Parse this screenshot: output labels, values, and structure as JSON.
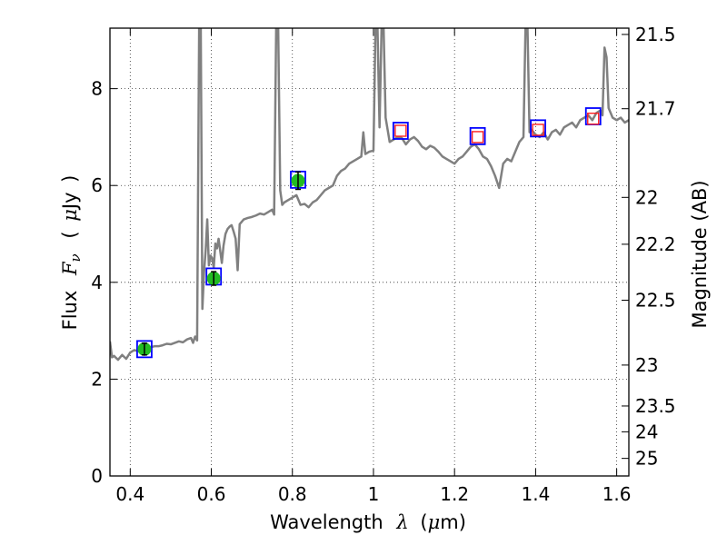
{
  "chart_data": {
    "type": "scatter",
    "xlabel": {
      "prefix": "Wavelength",
      "symbol": "λ",
      "unit_open": "(",
      "unit_mu": "μ",
      "unit_rest": "m)"
    },
    "ylabel": {
      "prefix": "Flux",
      "symbol": "F",
      "subscript": "ν",
      "unit_open": "(",
      "unit_mu": "μ",
      "unit_rest": "Jy",
      "unit_close": ")"
    },
    "y2label": "Magnitude (AB)",
    "xlim": [
      0.35,
      1.63
    ],
    "ylim": [
      0,
      9.25
    ],
    "xticks": [
      0.4,
      0.6,
      0.8,
      1.0,
      1.2,
      1.4,
      1.6
    ],
    "xtick_labels": [
      "0.4",
      "0.6",
      "0.8",
      "1",
      "1.2",
      "1.4",
      "1.6"
    ],
    "yticks": [
      0,
      2,
      4,
      6,
      8
    ],
    "ytick_labels": [
      "0",
      "2",
      "4",
      "6",
      "8"
    ],
    "y2ticks": [
      21.5,
      21.7,
      22,
      22.2,
      22.5,
      23,
      23.5,
      24,
      25
    ],
    "y2tick_labels": [
      "21.5",
      "21.7",
      "22",
      "22.2",
      "22.5",
      "23",
      "23.5",
      "24",
      "25"
    ],
    "grid": true,
    "colors": {
      "spectrum": "#808080",
      "observed_fill": "#22bb22",
      "model_box": "#0000ff",
      "predicted_box": "#ff2020",
      "errorbar": "#000000"
    },
    "spectrum": [
      [
        0.35,
        2.78
      ],
      [
        0.355,
        2.45
      ],
      [
        0.36,
        2.48
      ],
      [
        0.37,
        2.4
      ],
      [
        0.38,
        2.5
      ],
      [
        0.39,
        2.42
      ],
      [
        0.4,
        2.55
      ],
      [
        0.41,
        2.6
      ],
      [
        0.42,
        2.58
      ],
      [
        0.43,
        2.62
      ],
      [
        0.44,
        2.63
      ],
      [
        0.45,
        2.66
      ],
      [
        0.46,
        2.68
      ],
      [
        0.47,
        2.68
      ],
      [
        0.48,
        2.7
      ],
      [
        0.49,
        2.73
      ],
      [
        0.5,
        2.72
      ],
      [
        0.51,
        2.75
      ],
      [
        0.52,
        2.78
      ],
      [
        0.53,
        2.76
      ],
      [
        0.54,
        2.82
      ],
      [
        0.55,
        2.85
      ],
      [
        0.555,
        2.75
      ],
      [
        0.56,
        2.88
      ],
      [
        0.565,
        2.8
      ],
      [
        0.57,
        9.25
      ],
      [
        0.574,
        9.25
      ],
      [
        0.578,
        3.45
      ],
      [
        0.582,
        4.2
      ],
      [
        0.586,
        4.65
      ],
      [
        0.59,
        5.3
      ],
      [
        0.594,
        4.35
      ],
      [
        0.598,
        4.55
      ],
      [
        0.602,
        4.5
      ],
      [
        0.606,
        4.3
      ],
      [
        0.61,
        4.8
      ],
      [
        0.614,
        4.7
      ],
      [
        0.618,
        4.9
      ],
      [
        0.622,
        4.65
      ],
      [
        0.626,
        4.4
      ],
      [
        0.63,
        4.75
      ],
      [
        0.635,
        5.0
      ],
      [
        0.64,
        5.1
      ],
      [
        0.645,
        5.15
      ],
      [
        0.65,
        5.18
      ],
      [
        0.655,
        5.05
      ],
      [
        0.66,
        4.9
      ],
      [
        0.665,
        4.25
      ],
      [
        0.67,
        5.2
      ],
      [
        0.675,
        5.25
      ],
      [
        0.68,
        5.3
      ],
      [
        0.69,
        5.33
      ],
      [
        0.7,
        5.35
      ],
      [
        0.71,
        5.38
      ],
      [
        0.72,
        5.42
      ],
      [
        0.73,
        5.4
      ],
      [
        0.74,
        5.45
      ],
      [
        0.75,
        5.5
      ],
      [
        0.755,
        5.4
      ],
      [
        0.76,
        9.25
      ],
      [
        0.765,
        9.25
      ],
      [
        0.77,
        5.9
      ],
      [
        0.775,
        5.6
      ],
      [
        0.78,
        5.65
      ],
      [
        0.79,
        5.7
      ],
      [
        0.8,
        5.75
      ],
      [
        0.81,
        5.8
      ],
      [
        0.82,
        5.6
      ],
      [
        0.83,
        5.62
      ],
      [
        0.84,
        5.55
      ],
      [
        0.85,
        5.65
      ],
      [
        0.86,
        5.7
      ],
      [
        0.87,
        5.8
      ],
      [
        0.88,
        5.9
      ],
      [
        0.89,
        5.95
      ],
      [
        0.9,
        6.0
      ],
      [
        0.91,
        6.2
      ],
      [
        0.92,
        6.3
      ],
      [
        0.93,
        6.35
      ],
      [
        0.94,
        6.45
      ],
      [
        0.95,
        6.5
      ],
      [
        0.96,
        6.55
      ],
      [
        0.97,
        6.6
      ],
      [
        0.975,
        7.1
      ],
      [
        0.98,
        6.65
      ],
      [
        0.99,
        6.7
      ],
      [
        1.0,
        6.72
      ],
      [
        1.005,
        9.25
      ],
      [
        1.01,
        9.25
      ],
      [
        1.015,
        7.2
      ],
      [
        1.02,
        9.25
      ],
      [
        1.025,
        9.25
      ],
      [
        1.03,
        7.4
      ],
      [
        1.04,
        6.9
      ],
      [
        1.05,
        6.95
      ],
      [
        1.06,
        7.0
      ],
      [
        1.07,
        6.98
      ],
      [
        1.08,
        6.85
      ],
      [
        1.09,
        6.95
      ],
      [
        1.1,
        7.0
      ],
      [
        1.11,
        6.92
      ],
      [
        1.12,
        6.8
      ],
      [
        1.13,
        6.75
      ],
      [
        1.14,
        6.82
      ],
      [
        1.15,
        6.78
      ],
      [
        1.16,
        6.7
      ],
      [
        1.17,
        6.6
      ],
      [
        1.18,
        6.55
      ],
      [
        1.19,
        6.5
      ],
      [
        1.2,
        6.45
      ],
      [
        1.21,
        6.55
      ],
      [
        1.22,
        6.6
      ],
      [
        1.23,
        6.7
      ],
      [
        1.24,
        6.8
      ],
      [
        1.25,
        6.85
      ],
      [
        1.26,
        6.75
      ],
      [
        1.27,
        6.6
      ],
      [
        1.28,
        6.55
      ],
      [
        1.29,
        6.4
      ],
      [
        1.3,
        6.2
      ],
      [
        1.31,
        5.95
      ],
      [
        1.32,
        6.45
      ],
      [
        1.33,
        6.55
      ],
      [
        1.34,
        6.5
      ],
      [
        1.35,
        6.7
      ],
      [
        1.36,
        6.9
      ],
      [
        1.37,
        7.0
      ],
      [
        1.375,
        9.25
      ],
      [
        1.38,
        9.25
      ],
      [
        1.385,
        7.1
      ],
      [
        1.39,
        7.15
      ],
      [
        1.4,
        7.05
      ],
      [
        1.41,
        7.0
      ],
      [
        1.42,
        7.1
      ],
      [
        1.43,
        6.95
      ],
      [
        1.44,
        7.1
      ],
      [
        1.45,
        7.15
      ],
      [
        1.46,
        7.05
      ],
      [
        1.47,
        7.2
      ],
      [
        1.48,
        7.25
      ],
      [
        1.49,
        7.3
      ],
      [
        1.5,
        7.2
      ],
      [
        1.51,
        7.35
      ],
      [
        1.52,
        7.4
      ],
      [
        1.53,
        7.45
      ],
      [
        1.54,
        7.35
      ],
      [
        1.55,
        7.5
      ],
      [
        1.56,
        7.55
      ],
      [
        1.565,
        7.45
      ],
      [
        1.57,
        8.85
      ],
      [
        1.575,
        8.65
      ],
      [
        1.58,
        7.6
      ],
      [
        1.59,
        7.4
      ],
      [
        1.6,
        7.35
      ],
      [
        1.61,
        7.4
      ],
      [
        1.62,
        7.3
      ],
      [
        1.63,
        7.35
      ]
    ],
    "observed": [
      {
        "x": 0.435,
        "y": 2.62,
        "yerr": 0.12
      },
      {
        "x": 0.606,
        "y": 4.08,
        "yerr": 0.14
      },
      {
        "x": 0.814,
        "y": 6.1,
        "yerr": 0.18
      }
    ],
    "model_boxes": [
      {
        "x": 0.435,
        "y": 2.62
      },
      {
        "x": 0.606,
        "y": 4.12
      },
      {
        "x": 0.814,
        "y": 6.12
      },
      {
        "x": 1.067,
        "y": 7.13
      },
      {
        "x": 1.257,
        "y": 7.02
      },
      {
        "x": 1.406,
        "y": 7.18
      },
      {
        "x": 1.542,
        "y": 7.43
      }
    ],
    "predicted": [
      {
        "x": 1.067,
        "y": 7.13
      },
      {
        "x": 1.257,
        "y": 7.0
      },
      {
        "x": 1.406,
        "y": 7.15
      },
      {
        "x": 1.542,
        "y": 7.38
      }
    ]
  }
}
